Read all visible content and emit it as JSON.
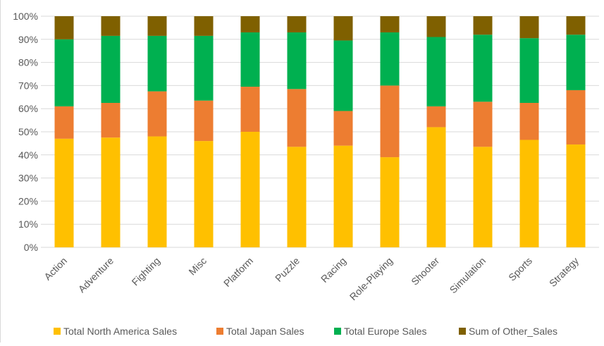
{
  "chart_data": {
    "type": "bar",
    "stacked": true,
    "percent_stacked": true,
    "categories": [
      "Action",
      "Adventure",
      "Fighting",
      "Misc",
      "Platform",
      "Puzzle",
      "Racing",
      "Role-Playing",
      "Shooter",
      "Simulation",
      "Sports",
      "Strategy"
    ],
    "series": [
      {
        "name": "Total North America Sales",
        "color": "#FFC000",
        "values": [
          47,
          47.5,
          48,
          46,
          50,
          43.5,
          44,
          39,
          52,
          43.5,
          46.5,
          44.5
        ]
      },
      {
        "name": "Total Japan Sales",
        "color": "#ED7D31",
        "values": [
          14,
          15,
          19.5,
          17.5,
          19.5,
          25,
          15,
          31,
          9,
          19.5,
          16,
          23.5
        ]
      },
      {
        "name": "Total Europe Sales",
        "color": "#00B050",
        "values": [
          29,
          29,
          24,
          28,
          23.5,
          24.5,
          30.5,
          23,
          30,
          29,
          28,
          24
        ]
      },
      {
        "name": "Sum of Other_Sales",
        "color": "#7F6000",
        "values": [
          10,
          8.5,
          8.5,
          8.5,
          7,
          7,
          10.5,
          7,
          9,
          8,
          9.5,
          8
        ]
      }
    ],
    "ylim": [
      0,
      100
    ],
    "yticks": [
      "0%",
      "10%",
      "20%",
      "30%",
      "40%",
      "50%",
      "60%",
      "70%",
      "80%",
      "90%",
      "100%"
    ],
    "grid": true,
    "legend_position": "bottom"
  }
}
